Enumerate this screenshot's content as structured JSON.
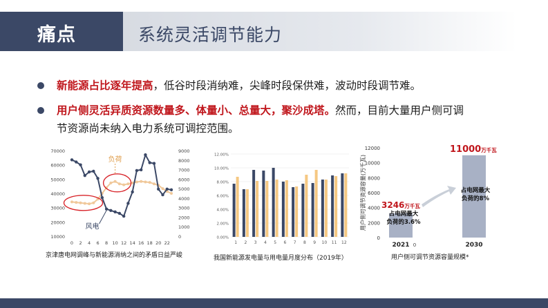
{
  "header": {
    "tag": "痛点",
    "title": "系统灵活调节能力"
  },
  "bullets": [
    {
      "highlight": "新能源占比逐年提高",
      "rest": "，低谷时段消纳难，尖峰时段保供难，波动时段调节难。"
    },
    {
      "highlight": "用户侧灵活异质资源数量多、体量小、总量大，聚沙成塔。",
      "rest": "然而，目前大量用户侧可调",
      "continuation": "节资源尚未纳入电力系统可调控范围。"
    }
  ],
  "colors": {
    "navy": "#3b4866",
    "red": "#c0161c",
    "orange": "#f5b660",
    "load": "#f0c89a",
    "bar_gray": "#a8b1c5"
  },
  "chart1": {
    "caption": "京津唐电网调峰与新能源消纳之间的矛盾日益严峻",
    "label_load": "负荷",
    "label_wind": "风电",
    "left_ticks": [
      "70000",
      "60000",
      "50000",
      "40000",
      "30000",
      "20000",
      "10000"
    ],
    "right_ticks": [
      "9000",
      "8000",
      "7000",
      "6000",
      "5000",
      "4000",
      "3000",
      "2000",
      "1000",
      "0"
    ],
    "x_ticks": [
      "0",
      "2",
      "4",
      "6",
      "8",
      "10",
      "12",
      "14",
      "16",
      "18",
      "20",
      "22"
    ]
  },
  "chart2": {
    "caption": "我国新能源发电量与用电量月度分布（2019年）",
    "y_ticks": [
      "12.00%",
      "10.00%",
      "8.00%",
      "6.00%",
      "4.00%",
      "2.00%",
      "0.00%"
    ],
    "x_ticks": [
      "1",
      "2",
      "3",
      "4",
      "5",
      "6",
      "7",
      "8",
      "9",
      "10",
      "11",
      "12"
    ]
  },
  "chart3": {
    "caption": "用户侧可调节资源容量规模*",
    "y_axis_label": "用户侧可调节资源容量(万千瓦)",
    "y_ticks": [
      "12000",
      "10000",
      "8000",
      "6000",
      "4000",
      "2000",
      "0"
    ],
    "x_labels": [
      "2021",
      "2030"
    ],
    "x_zero": "0",
    "value_2021": "3246",
    "value_2030": "11000",
    "unit": "万千瓦",
    "note_2021_l1": "占电网最大",
    "note_2021_l2": "负荷的3.6%",
    "note_2030_l1": "占电网最大",
    "note_2030_l2": "负荷的8%"
  },
  "chart_data": [
    {
      "type": "line",
      "xlabel": "",
      "ylabel": "",
      "x": [
        0,
        1,
        2,
        3,
        4,
        5,
        6,
        7,
        8,
        9,
        10,
        11,
        12,
        13,
        14,
        15,
        16,
        17,
        18,
        19,
        20,
        21,
        22,
        23
      ],
      "ylim": [
        10000,
        70000
      ],
      "y2lim": [
        0,
        9000
      ],
      "series": [
        {
          "name": "风电",
          "axis": "left",
          "values": [
            63500,
            62000,
            60000,
            52500,
            55000,
            55500,
            50500,
            37000,
            29000,
            28000,
            27000,
            26000,
            24000,
            33000,
            41000,
            56000,
            56500,
            67000,
            61500,
            61000,
            43000,
            39000,
            43000,
            42500
          ]
        },
        {
          "name": "负荷",
          "axis": "right",
          "values": [
            3600,
            3550,
            3500,
            3450,
            3400,
            3500,
            3900,
            4500,
            5100,
            5600,
            5750,
            5500,
            5400,
            5500,
            5600,
            5700,
            5750,
            5700,
            5650,
            5500,
            5350,
            5000,
            4700,
            4500
          ]
        }
      ]
    },
    {
      "type": "bar",
      "categories": [
        "1",
        "2",
        "3",
        "4",
        "5",
        "6",
        "7",
        "8",
        "9",
        "10",
        "11",
        "12"
      ],
      "ylim": [
        0,
        12
      ],
      "series": [
        {
          "name": "发电量",
          "color": "#3b4866",
          "values": [
            7.7,
            6.9,
            9.7,
            9.6,
            10.0,
            8.0,
            7.2,
            7.7,
            7.8,
            8.3,
            8.9,
            9.2
          ]
        },
        {
          "name": "用电量",
          "color": "#f5c882",
          "values": [
            8.7,
            6.9,
            8.1,
            8.1,
            8.3,
            8.2,
            7.3,
            9.0,
            9.7,
            8.3,
            8.8,
            9.2
          ]
        }
      ]
    },
    {
      "type": "bar",
      "categories": [
        "2021",
        "2030"
      ],
      "values": [
        3246,
        11000
      ],
      "ylim": [
        0,
        12000
      ],
      "ylabel": "用户侧可调节资源容量(万千瓦)"
    }
  ]
}
